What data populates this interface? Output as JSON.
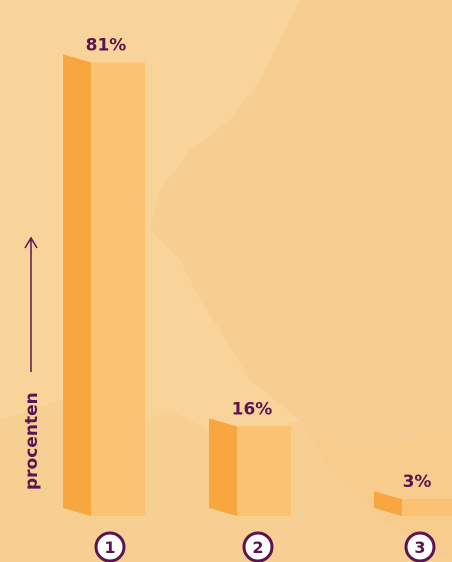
{
  "colors": {
    "background": "#f8d49a",
    "map_shape": "#f6c98a",
    "bar_front": "#fbc271",
    "bar_side": "#f7a640",
    "bar_top": "#fcd494",
    "text": "#5a1450"
  },
  "chart_data": {
    "type": "bar",
    "categories": [
      "1",
      "2",
      "3"
    ],
    "values": [
      81,
      16,
      3
    ],
    "value_labels": [
      "81%",
      "16%",
      "3%"
    ],
    "ylabel": "procenten",
    "ylim": [
      0,
      85
    ],
    "grid": false,
    "legend": "none"
  }
}
